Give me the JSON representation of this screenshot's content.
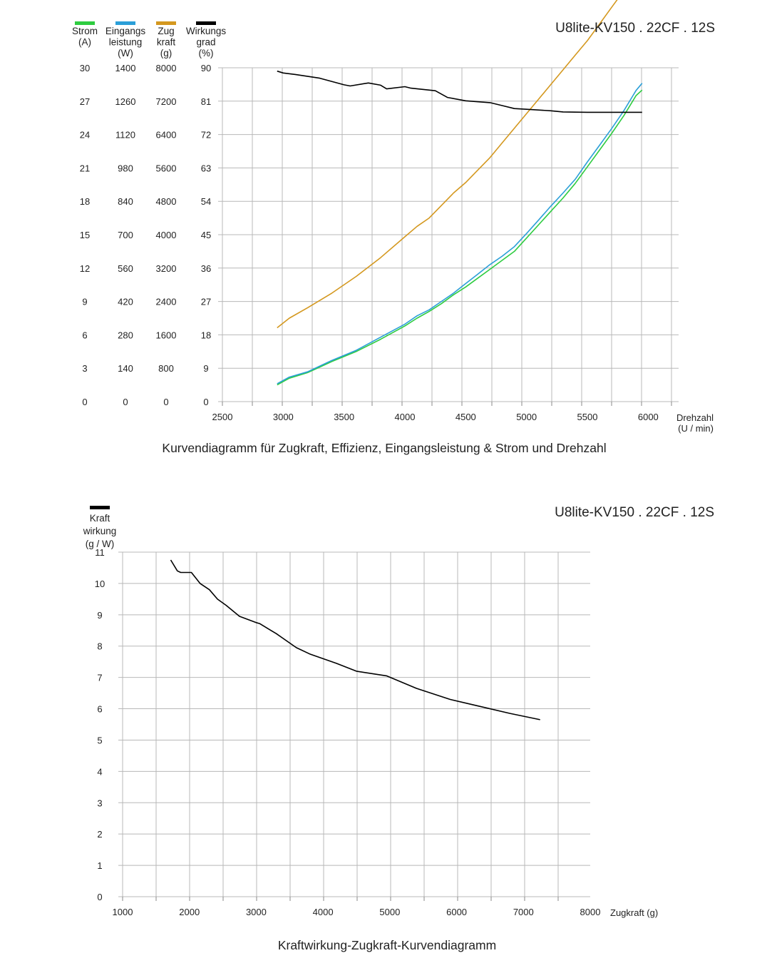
{
  "chart_data": [
    {
      "type": "line",
      "model": "U8lite-KV150 . 22CF . 12S",
      "caption": "Kurvendiagramm für Zugkraft, Effizienz, Eingangsleistung &  Strom und Drehzahl",
      "xlabel": [
        "Drehzahl",
        "(U / min)"
      ],
      "xlim": [
        2500,
        6250
      ],
      "x_ticks": [
        "2500",
        "3000",
        "3500",
        "4000",
        "4500",
        "5000",
        "5500",
        "6000"
      ],
      "y_axes": [
        {
          "key": "strom",
          "label": [
            "Strom",
            "(A)"
          ],
          "color": "#2ecc40",
          "ylim": [
            0,
            30
          ],
          "ticks": [
            "0",
            "3",
            "6",
            "9",
            "12",
            "15",
            "18",
            "21",
            "24",
            "27",
            "30"
          ]
        },
        {
          "key": "leistung",
          "label": [
            "Eingangs",
            "leistung",
            "(W)"
          ],
          "color": "#2b9fd8",
          "ylim": [
            0,
            1400
          ],
          "ticks": [
            "0",
            "140",
            "280",
            "420",
            "560",
            "700",
            "840",
            "980",
            "1120",
            "1260",
            "1400"
          ]
        },
        {
          "key": "zugkraft",
          "label": [
            "Zug",
            "kraft",
            "(g)"
          ],
          "color": "#d4981f",
          "ylim": [
            0,
            8000
          ],
          "ticks": [
            "0",
            "800",
            "1600",
            "2400",
            "3200",
            "4000",
            "4800",
            "5600",
            "6400",
            "7200",
            "8000"
          ]
        },
        {
          "key": "wirkung",
          "label": [
            "Wirkungs",
            "grad",
            "(%)"
          ],
          "color": "#000000",
          "ylim": [
            0,
            90
          ],
          "ticks": [
            "0",
            "9",
            "18",
            "27",
            "36",
            "45",
            "54",
            "63",
            "72",
            "81",
            "90"
          ]
        }
      ],
      "series": [
        {
          "axis": "strom",
          "color": "#2ecc40",
          "x": [
            2950,
            3050,
            3200,
            3400,
            3600,
            3800,
            4000,
            4100,
            4200,
            4300,
            4400,
            4500,
            4600,
            4700,
            4800,
            4900,
            5000,
            5100,
            5200,
            5300,
            5400,
            5500,
            5600,
            5700,
            5800,
            5900,
            5950
          ],
          "y": [
            1.5,
            2.1,
            2.6,
            3.6,
            4.5,
            5.6,
            6.8,
            7.5,
            8.1,
            8.8,
            9.6,
            10.3,
            11.1,
            11.9,
            12.7,
            13.5,
            14.7,
            15.9,
            17.1,
            18.3,
            19.6,
            21.1,
            22.6,
            24.1,
            25.7,
            27.5,
            28.0
          ]
        },
        {
          "axis": "leistung",
          "color": "#2b9fd8",
          "x": [
            2950,
            3050,
            3200,
            3400,
            3600,
            3800,
            4000,
            4100,
            4200,
            4300,
            4400,
            4500,
            4600,
            4700,
            4800,
            4900,
            5000,
            5100,
            5200,
            5300,
            5400,
            5500,
            5600,
            5700,
            5800,
            5900,
            5950
          ],
          "y": [
            75,
            103,
            125,
            173,
            215,
            270,
            325,
            360,
            385,
            420,
            455,
            495,
            535,
            575,
            610,
            650,
            705,
            762,
            820,
            875,
            932,
            1005,
            1075,
            1145,
            1220,
            1305,
            1335
          ]
        },
        {
          "axis": "zugkraft",
          "color": "#d4981f",
          "x": [
            2950,
            3050,
            3200,
            3400,
            3600,
            3800,
            4000,
            4100,
            4200,
            4300,
            4400,
            4500,
            4600,
            4700,
            4800,
            4900,
            5000,
            5100,
            5200,
            5300,
            5400,
            5500,
            5600,
            5700,
            5800,
            5900,
            5950
          ],
          "y": [
            1770,
            2000,
            2250,
            2600,
            3000,
            3450,
            3950,
            4200,
            4400,
            4700,
            5000,
            5250,
            5550,
            5850,
            6200,
            6550,
            6900,
            7250,
            7600,
            7950,
            8300,
            8650,
            9050,
            9450,
            9850,
            10250,
            10400
          ]
        },
        {
          "axis": "wirkung",
          "color": "#000000",
          "x": [
            2950,
            3000,
            3100,
            3300,
            3500,
            3550,
            3700,
            3800,
            3850,
            4000,
            4050,
            4250,
            4350,
            4500,
            4700,
            4800,
            4900,
            5000,
            5200,
            5300,
            5500,
            5700,
            5950
          ],
          "y": [
            89.1,
            88.6,
            88.2,
            87.2,
            85.4,
            85.1,
            85.9,
            85.3,
            84.3,
            84.9,
            84.5,
            83.8,
            82.0,
            81.1,
            80.6,
            79.8,
            79.0,
            78.8,
            78.4,
            78.1,
            78.0,
            78.0,
            78.0
          ]
        }
      ]
    },
    {
      "type": "line",
      "model": "U8lite-KV150 . 22CF . 12S",
      "caption": "Kraftwirkung-Zugkraft-Kurvendiagramm",
      "xlabel": [
        "Zugkraft (g)"
      ],
      "xlim": [
        1000,
        8000
      ],
      "x_ticks": [
        "1000",
        "2000",
        "3000",
        "4000",
        "5000",
        "6000",
        "7000",
        "8000"
      ],
      "y_axes": [
        {
          "key": "kraftwirkung",
          "label": [
            "Kraft",
            "wirkung",
            "(g / W)"
          ],
          "color": "#000000",
          "ylim": [
            0,
            11
          ],
          "ticks": [
            "0",
            "1",
            "2",
            "3",
            "4",
            "5",
            "6",
            "7",
            "8",
            "9",
            "10",
            "11"
          ]
        }
      ],
      "series": [
        {
          "axis": "kraftwirkung",
          "color": "#000000",
          "x": [
            1720,
            1820,
            1870,
            2030,
            2160,
            2300,
            2420,
            2550,
            2750,
            3000,
            3050,
            3300,
            3600,
            3800,
            4200,
            4500,
            4950,
            5400,
            5900,
            6300,
            6800,
            7250
          ],
          "y": [
            10.75,
            10.4,
            10.35,
            10.35,
            10.0,
            9.8,
            9.5,
            9.3,
            8.95,
            8.75,
            8.72,
            8.4,
            7.95,
            7.75,
            7.45,
            7.2,
            7.05,
            6.65,
            6.3,
            6.1,
            5.85,
            5.65
          ]
        }
      ]
    }
  ]
}
